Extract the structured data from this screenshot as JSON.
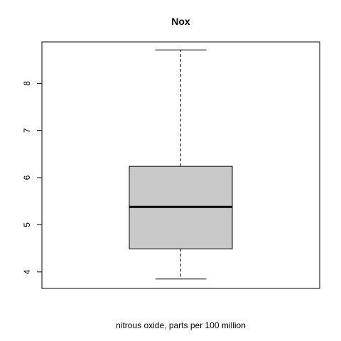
{
  "chart_data": {
    "type": "box",
    "title": "Nox",
    "xlabel": "nitrous oxide, parts per 100 million",
    "ylabel": "",
    "ylim": [
      3.65,
      8.88
    ],
    "yticks": [
      "4",
      "5",
      "6",
      "7",
      "8"
    ],
    "box": {
      "min": 3.85,
      "q1": 4.49,
      "median": 5.38,
      "q3": 6.24,
      "max": 8.71
    },
    "colors": {
      "box_fill": "#c8c8c8",
      "stroke": "#000000"
    },
    "grid": false
  }
}
